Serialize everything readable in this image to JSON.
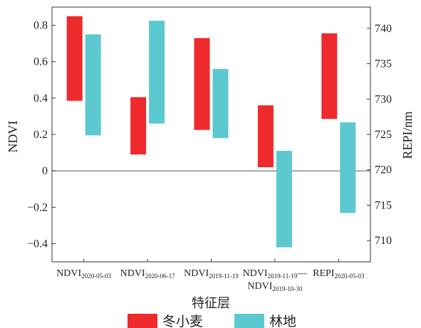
{
  "chart_data": {
    "type": "bar",
    "subtype": "floating-range",
    "xlabel": "特征层",
    "ylabel": "NDVI",
    "ylabel_right": "REPI/nm",
    "ylim": [
      -0.5,
      0.9
    ],
    "ylim_right": [
      707,
      743
    ],
    "yticks": [
      {
        "value": 0.8,
        "label": "0.8"
      },
      {
        "value": 0.6,
        "label": "0.6"
      },
      {
        "value": 0.4,
        "label": "0.4"
      },
      {
        "value": 0.2,
        "label": "0.2"
      },
      {
        "value": 0,
        "label": "0"
      },
      {
        "value": -0.2,
        "label": "−0.2"
      },
      {
        "value": -0.4,
        "label": "−0.4"
      }
    ],
    "yticks_right": [
      {
        "value": 740,
        "label": "740"
      },
      {
        "value": 735,
        "label": "735"
      },
      {
        "value": 730,
        "label": "730"
      },
      {
        "value": 725,
        "label": "725"
      },
      {
        "value": 720,
        "label": "720"
      },
      {
        "value": 715,
        "label": "715"
      },
      {
        "value": 710,
        "label": "710"
      }
    ],
    "categories": [
      {
        "main": "NDVI",
        "sub": "2020-05-03",
        "line2_main": "",
        "line2_sub": ""
      },
      {
        "main": "NDVI",
        "sub": "2020-06-17",
        "line2_main": "",
        "line2_sub": ""
      },
      {
        "main": "NDVI",
        "sub": "2019-11-19",
        "line2_main": "",
        "line2_sub": ""
      },
      {
        "main": "NDVI",
        "sub": "2019-11-19",
        "line2_main": "NDVI",
        "line2_sub": "2019-10-30"
      },
      {
        "main": "REPI",
        "sub": "2020-05-03",
        "line2_main": "",
        "line2_sub": ""
      }
    ],
    "series": [
      {
        "name": "冬小麦",
        "color": "#ee2a2d",
        "ranges": [
          {
            "low": 0.385,
            "high": 0.85,
            "axis": "left"
          },
          {
            "low": 0.09,
            "high": 0.405,
            "axis": "left"
          },
          {
            "low": 0.225,
            "high": 0.73,
            "axis": "left"
          },
          {
            "low": 0.02,
            "high": 0.36,
            "axis": "left"
          },
          {
            "low": 727.2,
            "high": 739.3,
            "axis": "right"
          }
        ]
      },
      {
        "name": "林地",
        "color": "#5cc8d0",
        "ranges": [
          {
            "low": 0.195,
            "high": 0.75,
            "axis": "left"
          },
          {
            "low": 0.26,
            "high": 0.825,
            "axis": "left"
          },
          {
            "low": 0.18,
            "high": 0.56,
            "axis": "left"
          },
          {
            "low": -0.42,
            "high": 0.11,
            "axis": "left"
          },
          {
            "low": 713.9,
            "high": 726.7,
            "axis": "right"
          }
        ]
      }
    ],
    "zero_line": true,
    "grid": false,
    "legend_position": "bottom"
  }
}
